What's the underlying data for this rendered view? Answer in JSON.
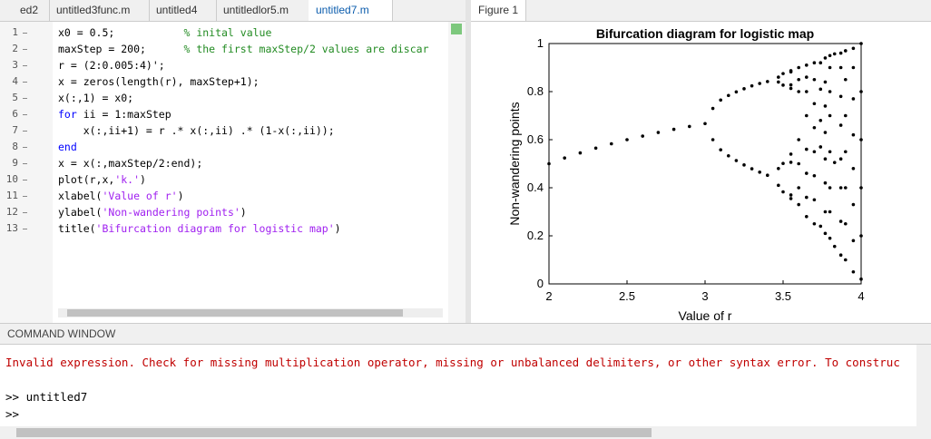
{
  "editor": {
    "tabs": [
      "ed2",
      "untitled3func.m",
      "untitled4",
      "untitledlor5.m",
      "untitled7.m"
    ],
    "active_tab": 4,
    "lines": [
      {
        "number": 1,
        "segments": [
          {
            "text": "x0 = 0.5;"
          },
          {
            "text": "           % inital value",
            "color": "#228b22"
          }
        ]
      },
      {
        "number": 2,
        "segments": [
          {
            "text": "maxStep = 200;"
          },
          {
            "text": "      % the first maxStep/2 values are discar",
            "color": "#228b22"
          }
        ]
      },
      {
        "number": 3,
        "segments": [
          {
            "text": "r = (2:0.005:4)';"
          }
        ]
      },
      {
        "number": 4,
        "segments": [
          {
            "text": "x = zeros(length(r), maxStep+1);"
          }
        ]
      },
      {
        "number": 5,
        "segments": [
          {
            "text": "x(:,1) = x0;"
          }
        ]
      },
      {
        "number": 6,
        "segments": [
          {
            "text": "for",
            "color": "#0000ff"
          },
          {
            "text": " ii = 1:maxStep"
          }
        ]
      },
      {
        "number": 7,
        "segments": [
          {
            "text": "    x(:,ii+1) = r .* x(:,ii) .* (1-x(:,ii));"
          }
        ]
      },
      {
        "number": 8,
        "segments": [
          {
            "text": "end",
            "color": "#0000ff"
          }
        ]
      },
      {
        "number": 9,
        "segments": [
          {
            "text": "x = x(:,maxStep/2:end);"
          }
        ]
      },
      {
        "number": 10,
        "segments": [
          {
            "text": "plot(r,x,"
          },
          {
            "text": "'k.'",
            "color": "#a020f0"
          },
          {
            "text": ")"
          }
        ]
      },
      {
        "number": 11,
        "segments": [
          {
            "text": "xlabel("
          },
          {
            "text": "'Value of r'",
            "color": "#a020f0"
          },
          {
            "text": ")"
          }
        ]
      },
      {
        "number": 12,
        "segments": [
          {
            "text": "ylabel("
          },
          {
            "text": "'Non-wandering points'",
            "color": "#a020f0"
          },
          {
            "text": ")"
          }
        ]
      },
      {
        "number": 13,
        "segments": [
          {
            "text": "title("
          },
          {
            "text": "'Bifurcation diagram for logistic map'",
            "color": "#a020f0"
          },
          {
            "text": ")"
          }
        ]
      }
    ]
  },
  "figure": {
    "tab": "Figure 1",
    "chart_data": {
      "type": "scatter",
      "title": "Bifurcation diagram for logistic map",
      "xlabel": "Value of r",
      "ylabel": "Non-wandering points",
      "color": "#000000",
      "xlim": [
        2,
        4
      ],
      "ylim": [
        0,
        1
      ],
      "xticks": [
        2,
        2.5,
        3,
        3.5,
        4
      ],
      "yticks": [
        0,
        0.2,
        0.4,
        0.6,
        0.8,
        1
      ],
      "points": [
        {
          "r": 2.0,
          "y": [
            0.5
          ]
        },
        {
          "r": 2.1,
          "y": [
            0.524
          ]
        },
        {
          "r": 2.2,
          "y": [
            0.545
          ]
        },
        {
          "r": 2.3,
          "y": [
            0.565
          ]
        },
        {
          "r": 2.4,
          "y": [
            0.583
          ]
        },
        {
          "r": 2.5,
          "y": [
            0.6
          ]
        },
        {
          "r": 2.6,
          "y": [
            0.615
          ]
        },
        {
          "r": 2.7,
          "y": [
            0.63
          ]
        },
        {
          "r": 2.8,
          "y": [
            0.643
          ]
        },
        {
          "r": 2.9,
          "y": [
            0.655
          ]
        },
        {
          "r": 3.0,
          "y": [
            0.667
          ]
        },
        {
          "r": 3.05,
          "y": [
            0.6,
            0.73
          ]
        },
        {
          "r": 3.1,
          "y": [
            0.558,
            0.765
          ]
        },
        {
          "r": 3.15,
          "y": [
            0.533,
            0.784
          ]
        },
        {
          "r": 3.2,
          "y": [
            0.513,
            0.799
          ]
        },
        {
          "r": 3.25,
          "y": [
            0.495,
            0.812
          ]
        },
        {
          "r": 3.3,
          "y": [
            0.479,
            0.824
          ]
        },
        {
          "r": 3.35,
          "y": [
            0.465,
            0.834
          ]
        },
        {
          "r": 3.4,
          "y": [
            0.452,
            0.842
          ]
        },
        {
          "r": 3.47,
          "y": [
            0.41,
            0.48,
            0.84,
            0.86
          ]
        },
        {
          "r": 3.5,
          "y": [
            0.383,
            0.501,
            0.827,
            0.875
          ]
        },
        {
          "r": 3.55,
          "y": [
            0.355,
            0.37,
            0.506,
            0.54,
            0.813,
            0.828,
            0.882,
            0.887
          ]
        },
        {
          "r": 3.6,
          "y": [
            0.33,
            0.4,
            0.5,
            0.6,
            0.8,
            0.85,
            0.9
          ]
        },
        {
          "r": 3.65,
          "y": [
            0.28,
            0.36,
            0.46,
            0.56,
            0.7,
            0.8,
            0.86,
            0.91
          ]
        },
        {
          "r": 3.7,
          "y": [
            0.25,
            0.35,
            0.45,
            0.55,
            0.65,
            0.75,
            0.85,
            0.92
          ]
        },
        {
          "r": 3.74,
          "y": [
            0.24,
            0.57,
            0.68,
            0.81,
            0.92
          ]
        },
        {
          "r": 3.77,
          "y": [
            0.21,
            0.3,
            0.42,
            0.52,
            0.63,
            0.74,
            0.84,
            0.94
          ]
        },
        {
          "r": 3.8,
          "y": [
            0.19,
            0.3,
            0.4,
            0.55,
            0.7,
            0.8,
            0.9,
            0.95
          ]
        },
        {
          "r": 3.83,
          "y": [
            0.156,
            0.505,
            0.957
          ]
        },
        {
          "r": 3.87,
          "y": [
            0.12,
            0.26,
            0.4,
            0.52,
            0.66,
            0.78,
            0.9,
            0.96
          ]
        },
        {
          "r": 3.9,
          "y": [
            0.1,
            0.25,
            0.4,
            0.55,
            0.7,
            0.85,
            0.97
          ]
        },
        {
          "r": 3.95,
          "y": [
            0.05,
            0.18,
            0.33,
            0.48,
            0.62,
            0.77,
            0.9,
            0.98
          ]
        },
        {
          "r": 4.0,
          "y": [
            0.02,
            0.2,
            0.4,
            0.6,
            0.8,
            1.0
          ]
        }
      ]
    }
  },
  "command_window": {
    "title": "COMMAND WINDOW",
    "lines": [
      {
        "text": "Invalid expression. Check for missing multiplication operator, missing or unbalanced delimiters, or other syntax error. To construc",
        "color": "#c00000"
      },
      {
        "text": ""
      },
      {
        "text": ">> untitled7"
      },
      {
        "text": ">>"
      }
    ]
  }
}
